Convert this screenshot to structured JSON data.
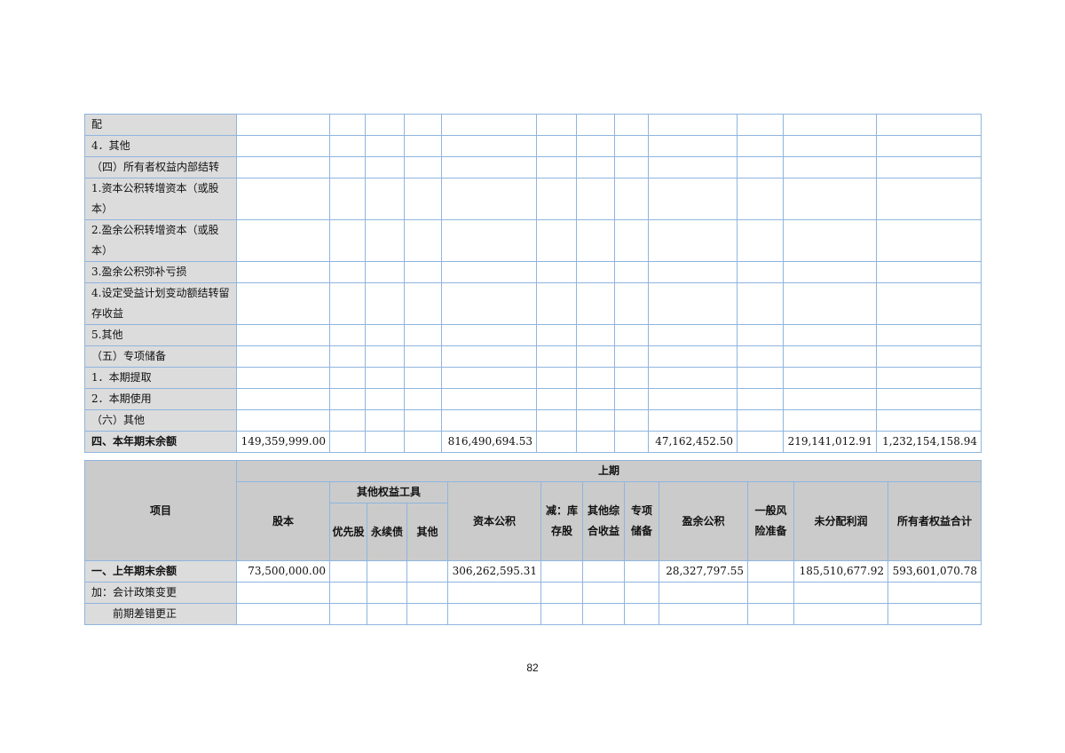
{
  "colors": {
    "border": "#8fb5df",
    "label_bg": "#dcdcdc",
    "header_bg": "#cbcbcb"
  },
  "current_table": {
    "rows": [
      {
        "label": "配",
        "values": []
      },
      {
        "label": "4．其他",
        "values": []
      },
      {
        "label": "（四）所有者权益内部结转",
        "values": []
      },
      {
        "label": "1.资本公积转增资本（或股本）",
        "values": [],
        "tall": true
      },
      {
        "label": "2.盈余公积转增资本（或股本）",
        "values": [],
        "tall": true
      },
      {
        "label": "3.盈余公积弥补亏损",
        "values": []
      },
      {
        "label": "4.设定受益计划变动额结转留存收益",
        "values": [],
        "tall": true
      },
      {
        "label": "5.其他",
        "values": []
      },
      {
        "label": "（五）专项储备",
        "values": []
      },
      {
        "label": "1．本期提取",
        "values": []
      },
      {
        "label": "2．本期使用",
        "values": []
      },
      {
        "label": "（六）其他",
        "values": []
      },
      {
        "label": "四、本年期末余额",
        "bold": true,
        "values": [
          "149,359,999.00",
          "",
          "",
          "",
          "816,490,694.53",
          "",
          "",
          "",
          "47,162,452.50",
          "",
          "219,141,012.91",
          "1,232,154,158.94"
        ]
      }
    ]
  },
  "prior_table": {
    "header": {
      "item": "项目",
      "period": "上期",
      "share_capital": "股本",
      "other_equity_tools": "其他权益工具",
      "preferred": "优先股",
      "perpetual": "永续债",
      "other": "其他",
      "capital_reserve": "资本公积",
      "treasury": "减：库存股",
      "oci": "其他综合收益",
      "special_reserve": "专项储备",
      "surplus_reserve": "盈余公积",
      "general_risk": "一般风险准备",
      "undistributed": "未分配利润",
      "total": "所有者权益合计"
    },
    "rows": [
      {
        "label": "一、上年期末余额",
        "bold": true,
        "values": [
          "73,500,000.00",
          "",
          "",
          "",
          "306,262,595.31",
          "",
          "",
          "",
          "28,327,797.55",
          "",
          "185,510,677.92",
          "593,601,070.78"
        ]
      },
      {
        "label": "加：会计政策变更",
        "values": []
      },
      {
        "label": "　　前期差错更正",
        "values": []
      }
    ]
  },
  "page_number": "82"
}
